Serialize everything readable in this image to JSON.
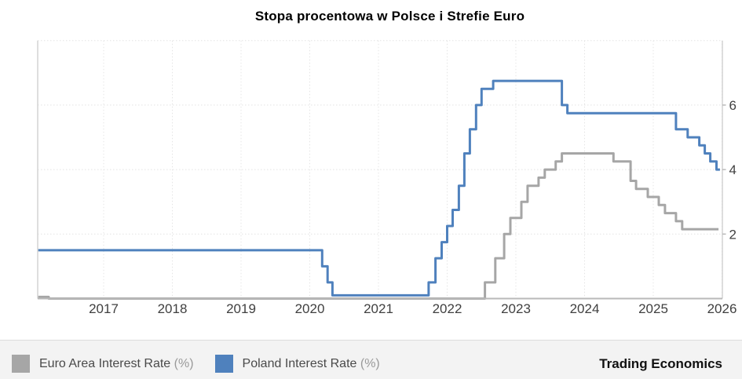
{
  "title": "Stopa procentowa w Polsce i Strefie Euro",
  "legend": {
    "items": [
      {
        "label": "Euro Area Interest Rate",
        "suffix": "(%)",
        "color": "#a6a6a6"
      },
      {
        "label": "Poland Interest Rate",
        "suffix": "(%)",
        "color": "#4f81bd"
      }
    ],
    "brand": "Trading Economics"
  },
  "chart_data": {
    "type": "line",
    "style": "step",
    "title": "Stopa procentowa w Polsce i Strefie Euro",
    "xlabel": "",
    "ylabel": "",
    "x_range": [
      2016.04,
      2026.0
    ],
    "y_range": [
      0,
      8
    ],
    "x_ticks": [
      2017,
      2018,
      2019,
      2020,
      2021,
      2022,
      2023,
      2024,
      2025,
      2026
    ],
    "y_ticks": [
      6,
      4,
      2
    ],
    "grid": true,
    "legend_position": "bottom",
    "axis_side": "right",
    "series": [
      {
        "name": "Euro Area Interest Rate (%)",
        "color": "#a6a6a6",
        "end": 2025.95,
        "points": [
          [
            2016.04,
            0.05
          ],
          [
            2016.2,
            0.0
          ],
          [
            2022.55,
            0.5
          ],
          [
            2022.7,
            1.25
          ],
          [
            2022.83,
            2.0
          ],
          [
            2022.92,
            2.5
          ],
          [
            2023.08,
            3.0
          ],
          [
            2023.17,
            3.5
          ],
          [
            2023.33,
            3.75
          ],
          [
            2023.42,
            4.0
          ],
          [
            2023.58,
            4.25
          ],
          [
            2023.67,
            4.5
          ],
          [
            2024.42,
            4.25
          ],
          [
            2024.67,
            3.65
          ],
          [
            2024.75,
            3.4
          ],
          [
            2024.92,
            3.15
          ],
          [
            2025.08,
            2.9
          ],
          [
            2025.17,
            2.65
          ],
          [
            2025.33,
            2.4
          ],
          [
            2025.42,
            2.15
          ]
        ]
      },
      {
        "name": "Poland Interest Rate (%)",
        "color": "#4f81bd",
        "end": 2025.97,
        "points": [
          [
            2016.04,
            1.5
          ],
          [
            2020.18,
            1.0
          ],
          [
            2020.26,
            0.5
          ],
          [
            2020.33,
            0.1
          ],
          [
            2021.73,
            0.5
          ],
          [
            2021.83,
            1.25
          ],
          [
            2021.92,
            1.75
          ],
          [
            2022.0,
            2.25
          ],
          [
            2022.08,
            2.75
          ],
          [
            2022.17,
            3.5
          ],
          [
            2022.25,
            4.5
          ],
          [
            2022.33,
            5.25
          ],
          [
            2022.42,
            6.0
          ],
          [
            2022.5,
            6.5
          ],
          [
            2022.67,
            6.75
          ],
          [
            2023.67,
            6.0
          ],
          [
            2023.75,
            5.75
          ],
          [
            2025.33,
            5.25
          ],
          [
            2025.5,
            5.0
          ],
          [
            2025.67,
            4.75
          ],
          [
            2025.75,
            4.5
          ],
          [
            2025.83,
            4.25
          ],
          [
            2025.92,
            4.0
          ]
        ]
      }
    ]
  }
}
